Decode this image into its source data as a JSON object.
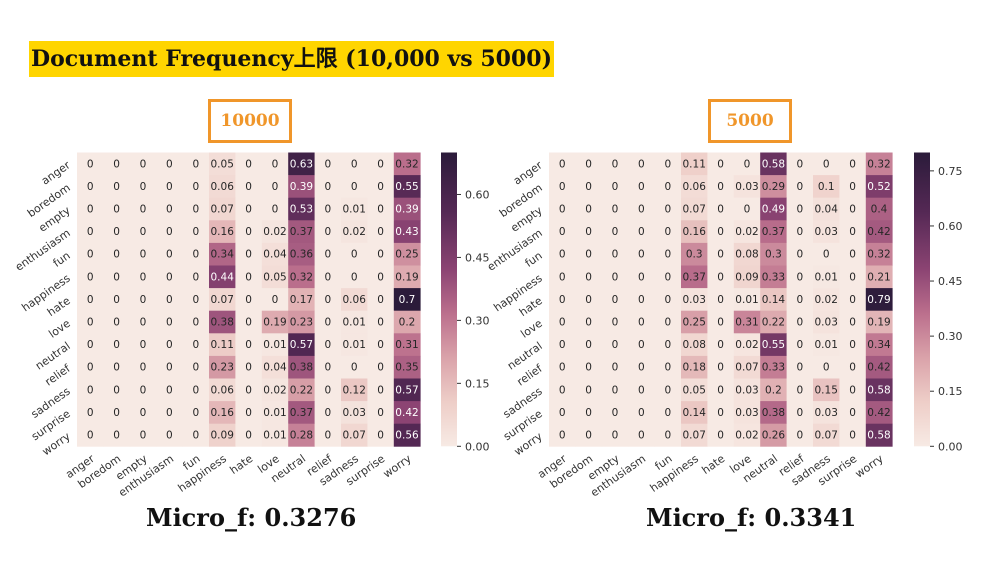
{
  "title": "Document Frequency上限 (10,000 vs 5000)",
  "colors": {
    "title_highlight": "#FFD500",
    "box_border": "#F0962A",
    "cmap_low": "#F7EAE4",
    "cmap_high": "#2B1B3A"
  },
  "chart_data": [
    {
      "type": "heatmap",
      "panel_label": "10000",
      "metric": "Micro_f: 0.3276",
      "rows": [
        "anger",
        "boredom",
        "empty",
        "enthusiasm",
        "fun",
        "happiness",
        "hate",
        "love",
        "neutral",
        "relief",
        "sadness",
        "surprise",
        "worry"
      ],
      "cols": [
        "anger",
        "boredom",
        "empty",
        "enthusiasm",
        "fun",
        "happiness",
        "hate",
        "love",
        "neutral",
        "relief",
        "sadness",
        "surprise",
        "worry"
      ],
      "col_tick_labels": [
        "anger",
        "boredom",
        "empty",
        "enthusiasm",
        "fun",
        "happiness",
        "hate",
        "love",
        "neutral",
        "relief",
        "sadness",
        "surprise",
        "worry"
      ],
      "values": [
        [
          0,
          0,
          0,
          0,
          0,
          0.05,
          0,
          0,
          0.63,
          0,
          0,
          0,
          0.32
        ],
        [
          0,
          0,
          0,
          0,
          0,
          0.06,
          0,
          0,
          0.39,
          0,
          0,
          0,
          0.55
        ],
        [
          0,
          0,
          0,
          0,
          0,
          0.07,
          0,
          0,
          0.53,
          0,
          0.01,
          0,
          0.39
        ],
        [
          0,
          0,
          0,
          0,
          0,
          0.16,
          0,
          0.02,
          0.37,
          0,
          0.02,
          0,
          0.43
        ],
        [
          0,
          0,
          0,
          0,
          0,
          0.34,
          0,
          0.04,
          0.36,
          0,
          0,
          0,
          0.25
        ],
        [
          0,
          0,
          0,
          0,
          0,
          0.44,
          0,
          0.05,
          0.32,
          0,
          0,
          0,
          0.19
        ],
        [
          0,
          0,
          0,
          0,
          0,
          0.07,
          0,
          0,
          0.17,
          0,
          0.06,
          0,
          0.7
        ],
        [
          0,
          0,
          0,
          0,
          0,
          0.38,
          0,
          0.19,
          0.23,
          0,
          0.01,
          0,
          0.2
        ],
        [
          0,
          0,
          0,
          0,
          0,
          0.11,
          0,
          0.01,
          0.57,
          0,
          0.01,
          0,
          0.31
        ],
        [
          0,
          0,
          0,
          0,
          0,
          0.23,
          0,
          0.04,
          0.38,
          0,
          0,
          0,
          0.35
        ],
        [
          0,
          0,
          0,
          0,
          0,
          0.06,
          0,
          0.02,
          0.22,
          0,
          0.12,
          0,
          0.57
        ],
        [
          0,
          0,
          0,
          0,
          0,
          0.16,
          0,
          0.01,
          0.37,
          0,
          0.03,
          0,
          0.42
        ],
        [
          0,
          0,
          0,
          0,
          0,
          0.09,
          0,
          0.01,
          0.28,
          0,
          0.07,
          0,
          0.56
        ]
      ],
      "colorbar": {
        "min": 0,
        "max": 0.7,
        "ticks": [
          "0.00",
          "0.15",
          "0.30",
          "0.45",
          "0.60"
        ]
      }
    },
    {
      "type": "heatmap",
      "panel_label": "5000",
      "metric": "Micro_f: 0.3341",
      "rows": [
        "anger",
        "boredom",
        "empty",
        "enthusiasm",
        "fun",
        "happiness",
        "hate",
        "love",
        "neutral",
        "relief",
        "sadness",
        "surprise",
        "worry"
      ],
      "cols": [
        "anger",
        "boredom",
        "empty",
        "enthusiasm",
        "fun",
        "happiness",
        "hate",
        "love",
        "neutral",
        "relief",
        "sadness",
        "surprise",
        "worry"
      ],
      "col_tick_labels": [
        "anger",
        "boredom",
        "empty",
        "enthusiasm",
        "fun",
        "happiness",
        "hate",
        "love",
        "neutral",
        "relief",
        "sadness",
        "surprise",
        "worry"
      ],
      "values": [
        [
          0,
          0,
          0,
          0,
          0,
          0.11,
          0,
          0,
          0.58,
          0,
          0,
          0,
          0.32
        ],
        [
          0,
          0,
          0,
          0,
          0,
          0.06,
          0,
          0.03,
          0.29,
          0,
          0.1,
          0,
          0.52
        ],
        [
          0,
          0,
          0,
          0,
          0,
          0.07,
          0,
          0,
          0.49,
          0,
          0.04,
          0,
          0.4
        ],
        [
          0,
          0,
          0,
          0,
          0,
          0.16,
          0,
          0.02,
          0.37,
          0,
          0.03,
          0,
          0.42
        ],
        [
          0,
          0,
          0,
          0,
          0,
          0.3,
          0,
          0.08,
          0.3,
          0,
          0,
          0,
          0.32
        ],
        [
          0,
          0,
          0,
          0,
          0,
          0.37,
          0,
          0.09,
          0.33,
          0,
          0.01,
          0,
          0.21
        ],
        [
          0,
          0,
          0,
          0,
          0,
          0.03,
          0,
          0.01,
          0.14,
          0,
          0.02,
          0,
          0.79
        ],
        [
          0,
          0,
          0,
          0,
          0,
          0.25,
          0,
          0.31,
          0.22,
          0,
          0.03,
          0,
          0.19
        ],
        [
          0,
          0,
          0,
          0,
          0,
          0.08,
          0,
          0.02,
          0.55,
          0,
          0.01,
          0,
          0.34
        ],
        [
          0,
          0,
          0,
          0,
          0,
          0.18,
          0,
          0.07,
          0.33,
          0,
          0,
          0,
          0.42
        ],
        [
          0,
          0,
          0,
          0,
          0,
          0.05,
          0,
          0.03,
          0.2,
          0,
          0.15,
          0,
          0.58
        ],
        [
          0,
          0,
          0,
          0,
          0,
          0.14,
          0,
          0.03,
          0.38,
          0,
          0.03,
          0,
          0.42
        ],
        [
          0,
          0,
          0,
          0,
          0,
          0.07,
          0,
          0.02,
          0.26,
          0,
          0.07,
          0,
          0.58
        ]
      ],
      "colorbar": {
        "min": 0,
        "max": 0.8,
        "ticks": [
          "0.00",
          "0.15",
          "0.30",
          "0.45",
          "0.60",
          "0.75"
        ]
      }
    }
  ]
}
